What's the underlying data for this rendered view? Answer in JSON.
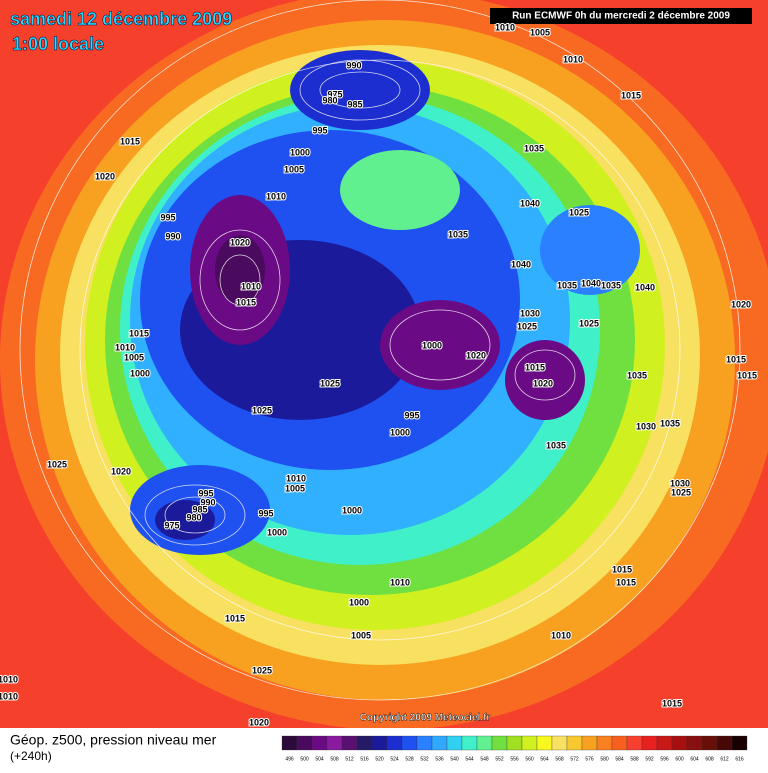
{
  "header": {
    "date": "samedi 12 décembre 2009",
    "time": "1:00 locale",
    "run": "Run ECMWF 0h du mercredi 2 décembre 2009"
  },
  "map": {
    "copyright": "Copyright 2009 Meteociel.fr",
    "isobar_labels": [
      "1010",
      "1005",
      "1010",
      "990",
      "975",
      "980",
      "985",
      "1015",
      "995",
      "1015",
      "1000",
      "1035",
      "1005",
      "1020",
      "1010",
      "1040",
      "1025",
      "995",
      "1035",
      "990",
      "1020",
      "1040",
      "1010",
      "1035",
      "1040",
      "1035",
      "1040",
      "1015",
      "1020",
      "1030",
      "1025",
      "1025",
      "1015",
      "1000",
      "1010",
      "1020",
      "1005",
      "1015",
      "1015",
      "1000",
      "1025",
      "1020",
      "1035",
      "1015",
      "1025",
      "995",
      "1030",
      "1035",
      "1000",
      "1035",
      "1025",
      "1020",
      "1010",
      "1005",
      "1030",
      "1025",
      "995",
      "990",
      "985",
      "980",
      "995",
      "1000",
      "975",
      "1000",
      "1010",
      "1015",
      "1015",
      "1000",
      "1015",
      "1010",
      "1005",
      "1025",
      "1010",
      "1010",
      "1020",
      "1015"
    ]
  },
  "legend": {
    "title": "Géop. z500, pression niveau mer",
    "lead": "(+240h)",
    "values": [
      496,
      500,
      504,
      508,
      512,
      516,
      520,
      524,
      528,
      532,
      536,
      540,
      544,
      548,
      552,
      556,
      560,
      564,
      568,
      572,
      576,
      580,
      584,
      588,
      592,
      596,
      600,
      604,
      608,
      612,
      616
    ],
    "colors": [
      "#2c0a3a",
      "#4a0a5e",
      "#6a0a84",
      "#8a1aa0",
      "#5a1070",
      "#241a66",
      "#1a1a9a",
      "#1c2ed0",
      "#1f50f0",
      "#2a80ff",
      "#30a8ff",
      "#30d0f0",
      "#40f0c8",
      "#60f090",
      "#70e040",
      "#a0e020",
      "#d0f020",
      "#f8f820",
      "#f8e060",
      "#f8c830",
      "#f8a020",
      "#f88020",
      "#f86020",
      "#f84030",
      "#e82020",
      "#c81818",
      "#a81010",
      "#881010",
      "#681008",
      "#480808",
      "#180000"
    ]
  }
}
